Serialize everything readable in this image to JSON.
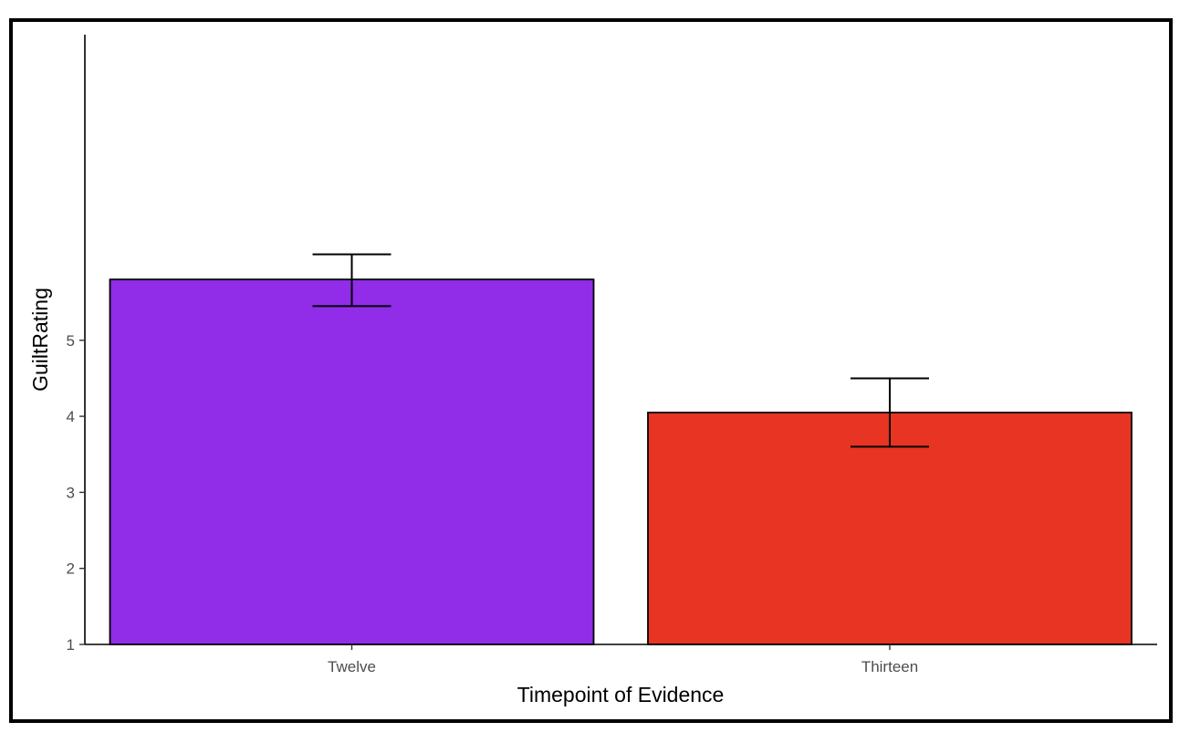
{
  "chart_data": {
    "type": "bar",
    "title": "",
    "xlabel": "Timepoint of Evidence",
    "ylabel": "GuiltRating",
    "categories": [
      "Twelve",
      "Thirteen"
    ],
    "values": [
      5.8,
      4.05
    ],
    "error_bars": [
      {
        "low": 5.45,
        "high": 6.13
      },
      {
        "low": 3.6,
        "high": 4.5
      }
    ],
    "colors": [
      "#912ce8",
      "#e83423"
    ],
    "yticks": [
      1,
      2,
      3,
      4,
      5
    ],
    "ylim": [
      1,
      9
    ],
    "grid": false,
    "legend": "none"
  }
}
